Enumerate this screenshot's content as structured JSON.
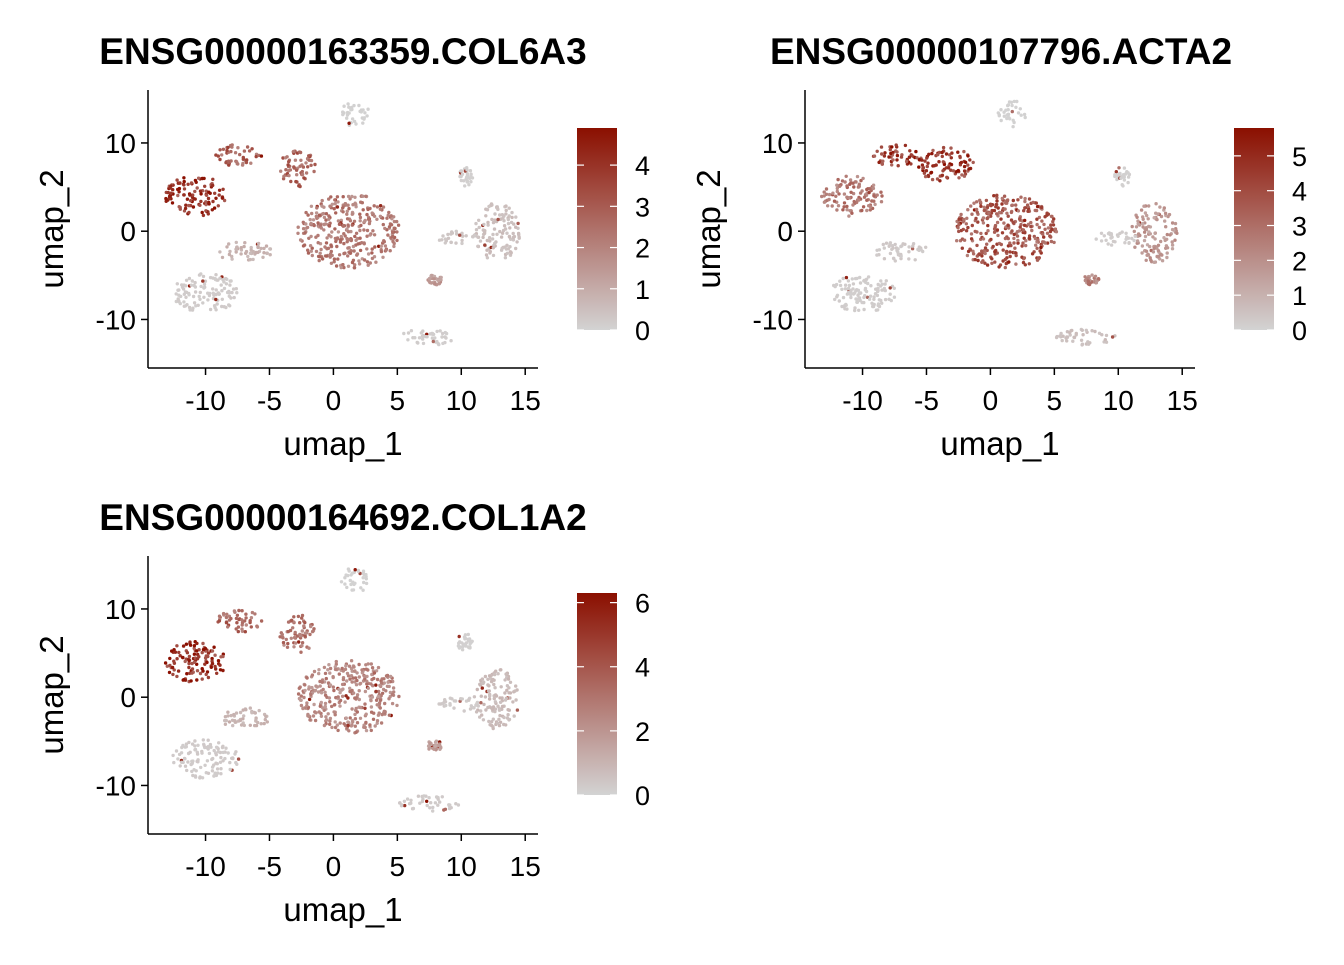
{
  "chart_data": [
    {
      "type": "scatter",
      "title": "ENSG00000163359.COL6A3",
      "xlabel": "umap_1",
      "ylabel": "umap_2",
      "xlim": [
        -14.5,
        16
      ],
      "ylim": [
        -15.5,
        16
      ],
      "xticks": [
        -10,
        -5,
        0,
        5,
        10,
        15
      ],
      "yticks": [
        -10,
        0,
        10
      ],
      "color_scale": {
        "low": "#d3d3d3",
        "high": "#8b0f00",
        "min": 0,
        "max": 4.9,
        "ticks": [
          0,
          1,
          2,
          3,
          4
        ]
      },
      "clusters": [
        {
          "name": "c1",
          "cx": -10.8,
          "cy": 4,
          "rx": 2.4,
          "ry": 2.3,
          "value": 4.2
        },
        {
          "name": "c2",
          "cx": -7.4,
          "cy": 8.6,
          "rx": 1.8,
          "ry": 1.3,
          "value": 3.0
        },
        {
          "name": "c3",
          "cx": -2.8,
          "cy": 7.2,
          "rx": 1.4,
          "ry": 2.2,
          "value": 2.9
        },
        {
          "name": "c4",
          "cx": 1.2,
          "cy": 0,
          "rx": 4.0,
          "ry": 4.2,
          "value": 2.3
        },
        {
          "name": "c5",
          "cx": -7,
          "cy": -2.3,
          "rx": 2.2,
          "ry": 1.1,
          "value": 0.8
        },
        {
          "name": "c6",
          "cx": -10,
          "cy": -7,
          "rx": 2.6,
          "ry": 2.2,
          "value": 0.2
        },
        {
          "name": "c7",
          "cx": 1.7,
          "cy": 13.3,
          "rx": 1.1,
          "ry": 1.5,
          "value": 0.05
        },
        {
          "name": "c8",
          "cx": 12.8,
          "cy": -0.2,
          "rx": 1.8,
          "ry": 3.4,
          "value": 0.5
        },
        {
          "name": "c9",
          "cx": 9.8,
          "cy": -0.8,
          "rx": 1.6,
          "ry": 0.8,
          "value": 0.3
        },
        {
          "name": "c10",
          "cx": 10.3,
          "cy": 6.2,
          "rx": 0.6,
          "ry": 1.1,
          "value": 0.1
        },
        {
          "name": "c11",
          "cx": 7.5,
          "cy": -12,
          "rx": 2.4,
          "ry": 0.9,
          "value": 0.15
        },
        {
          "name": "c12",
          "cx": 7.9,
          "cy": -5.5,
          "rx": 0.6,
          "ry": 0.6,
          "value": 1.5
        }
      ]
    },
    {
      "type": "scatter",
      "title": "ENSG00000107796.ACTA2",
      "xlabel": "umap_1",
      "ylabel": "umap_2",
      "xlim": [
        -14.5,
        16
      ],
      "ylim": [
        -15.5,
        16
      ],
      "xticks": [
        -10,
        -5,
        0,
        5,
        10,
        15
      ],
      "yticks": [
        -10,
        0,
        10
      ],
      "color_scale": {
        "low": "#d3d3d3",
        "high": "#8b0f00",
        "min": 0,
        "max": 5.8,
        "ticks": [
          0,
          1,
          2,
          3,
          4,
          5
        ]
      },
      "clusters": [
        {
          "name": "c1",
          "cx": -10.8,
          "cy": 4,
          "rx": 2.4,
          "ry": 2.3,
          "value": 2.8
        },
        {
          "name": "c2",
          "cx": -7.4,
          "cy": 8.6,
          "rx": 1.8,
          "ry": 1.3,
          "value": 4.8
        },
        {
          "name": "c3",
          "cx": -3.5,
          "cy": 7.5,
          "rx": 2.2,
          "ry": 2.0,
          "value": 5.0
        },
        {
          "name": "c4",
          "cx": 1.2,
          "cy": 0,
          "rx": 4.0,
          "ry": 4.2,
          "value": 3.8
        },
        {
          "name": "c5",
          "cx": -7,
          "cy": -2.3,
          "rx": 2.2,
          "ry": 1.1,
          "value": 0.3
        },
        {
          "name": "c6",
          "cx": -10,
          "cy": -7,
          "rx": 2.6,
          "ry": 2.2,
          "value": 0.2
        },
        {
          "name": "c7",
          "cx": 1.7,
          "cy": 13.3,
          "rx": 1.1,
          "ry": 1.5,
          "value": 0.05
        },
        {
          "name": "c8",
          "cx": 12.8,
          "cy": -0.2,
          "rx": 1.8,
          "ry": 3.4,
          "value": 1.8
        },
        {
          "name": "c9",
          "cx": 9.8,
          "cy": -0.8,
          "rx": 1.6,
          "ry": 0.8,
          "value": 0.2
        },
        {
          "name": "c10",
          "cx": 10.3,
          "cy": 6.2,
          "rx": 0.6,
          "ry": 1.1,
          "value": 0.1
        },
        {
          "name": "c11",
          "cx": 7.5,
          "cy": -12,
          "rx": 2.4,
          "ry": 0.9,
          "value": 0.6
        },
        {
          "name": "c12",
          "cx": 7.9,
          "cy": -5.5,
          "rx": 0.6,
          "ry": 0.6,
          "value": 2.5
        }
      ]
    },
    {
      "type": "scatter",
      "title": "ENSG00000164692.COL1A2",
      "xlabel": "umap_1",
      "ylabel": "umap_2",
      "xlim": [
        -14.5,
        16
      ],
      "ylim": [
        -15.5,
        16
      ],
      "xticks": [
        -10,
        -5,
        0,
        5,
        10,
        15
      ],
      "yticks": [
        -10,
        0,
        10
      ],
      "color_scale": {
        "low": "#d3d3d3",
        "high": "#8b0f00",
        "min": 0,
        "max": 6.3,
        "ticks": [
          0,
          2,
          4,
          6
        ]
      },
      "clusters": [
        {
          "name": "c1",
          "cx": -10.8,
          "cy": 4,
          "rx": 2.4,
          "ry": 2.3,
          "value": 5.6
        },
        {
          "name": "c2",
          "cx": -7.4,
          "cy": 8.6,
          "rx": 1.8,
          "ry": 1.3,
          "value": 3.6
        },
        {
          "name": "c3",
          "cx": -2.8,
          "cy": 7.2,
          "rx": 1.4,
          "ry": 2.2,
          "value": 3.2
        },
        {
          "name": "c4",
          "cx": 1.2,
          "cy": 0,
          "rx": 4.0,
          "ry": 4.2,
          "value": 2.6
        },
        {
          "name": "c5",
          "cx": -7,
          "cy": -2.3,
          "rx": 2.2,
          "ry": 1.1,
          "value": 1.0
        },
        {
          "name": "c6",
          "cx": -10,
          "cy": -7,
          "rx": 2.6,
          "ry": 2.2,
          "value": 0.3
        },
        {
          "name": "c7",
          "cx": 1.7,
          "cy": 13.3,
          "rx": 1.1,
          "ry": 1.5,
          "value": 0.05
        },
        {
          "name": "c8",
          "cx": 12.8,
          "cy": -0.2,
          "rx": 1.8,
          "ry": 3.4,
          "value": 0.8
        },
        {
          "name": "c9",
          "cx": 9.8,
          "cy": -0.8,
          "rx": 1.6,
          "ry": 0.8,
          "value": 0.3
        },
        {
          "name": "c10",
          "cx": 10.3,
          "cy": 6.2,
          "rx": 0.6,
          "ry": 1.1,
          "value": 0.1
        },
        {
          "name": "c11",
          "cx": 7.5,
          "cy": -12,
          "rx": 2.4,
          "ry": 0.9,
          "value": 0.3
        },
        {
          "name": "c12",
          "cx": 7.9,
          "cy": -5.5,
          "rx": 0.6,
          "ry": 0.6,
          "value": 1.8
        }
      ]
    }
  ]
}
